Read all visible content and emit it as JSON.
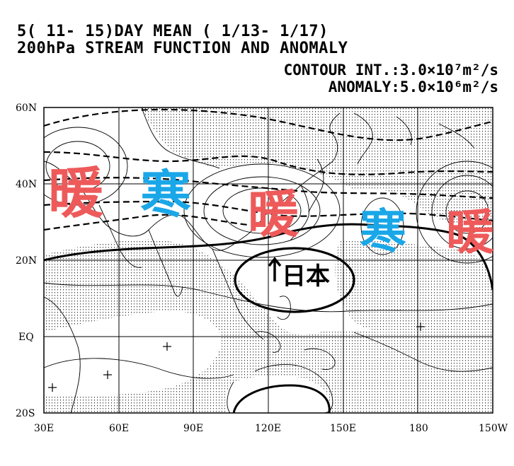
{
  "header": {
    "line1": "5( 11- 15)DAY MEAN ( 1/13- 1/17)",
    "line2": "200hPa STREAM FUNCTION AND ANOMALY",
    "contour_interval": "CONTOUR INT.:3.0×10⁷m²/s",
    "anomaly_interval": "ANOMALY:5.0×10⁶m²/s"
  },
  "map": {
    "lat_labels": [
      "60N",
      "40N",
      "20N",
      "EQ",
      "20S"
    ],
    "lon_labels": [
      "30E",
      "60E",
      "90E",
      "120E",
      "150E",
      "180",
      "150W"
    ]
  },
  "annotations": {
    "warm_label": "暖",
    "cold_label": "寒",
    "japan_label": "日本",
    "warm_color": "#ee5a5a",
    "cold_color": "#1aa7e8"
  }
}
